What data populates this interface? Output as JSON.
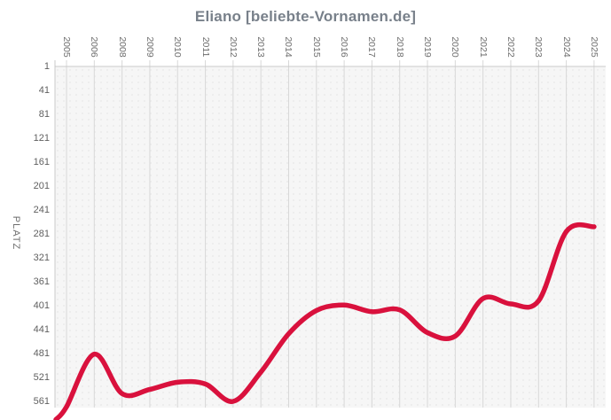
{
  "title": "Eliano [beliebte-Vornamen.de]",
  "y_axis": {
    "title": "PLATZ",
    "ticks": [
      1,
      41,
      81,
      121,
      161,
      201,
      241,
      281,
      321,
      361,
      401,
      441,
      481,
      521,
      561
    ]
  },
  "x_axis": {
    "categories": [
      "2005",
      "2006",
      "2008",
      "2009",
      "2010",
      "2011",
      "2012",
      "2013",
      "2014",
      "2015",
      "2016",
      "2017",
      "2018",
      "2019",
      "2020",
      "2021",
      "2022",
      "2023",
      "2024",
      "2025"
    ]
  },
  "colors": {
    "line": "#d9113d",
    "title_text": "#78808a",
    "axis_text": "#5f5f5f",
    "gridline": "#d8d8d8",
    "axis_line": "#c9c9c9",
    "plot_bg": "#f6f6f6",
    "plot_dot": "#e7e7e7"
  },
  "chart_data": {
    "type": "line",
    "title": "Eliano [beliebte-Vornamen.de]",
    "xlabel": "",
    "ylabel": "PLATZ",
    "categories": [
      "2005",
      "2006",
      "2008",
      "2009",
      "2010",
      "2011",
      "2012",
      "2013",
      "2014",
      "2015",
      "2016",
      "2017",
      "2018",
      "2019",
      "2020",
      "2021",
      "2022",
      "2023",
      "2024",
      "2025"
    ],
    "series": [
      {
        "name": "Eliano",
        "values": [
          570,
          482,
          548,
          541,
          529,
          532,
          561,
          512,
          448,
          409,
          400,
          411,
          408,
          446,
          452,
          389,
          398,
          393,
          277,
          269
        ]
      }
    ],
    "y_axis_inverted": true,
    "y_ticks": [
      1,
      41,
      81,
      121,
      161,
      201,
      241,
      281,
      321,
      361,
      401,
      441,
      481,
      521,
      561
    ],
    "ylim": [
      1,
      592
    ],
    "grid": "vertical-only",
    "legend": "none",
    "line_color": "#d9113d",
    "smoothing": "spline"
  }
}
